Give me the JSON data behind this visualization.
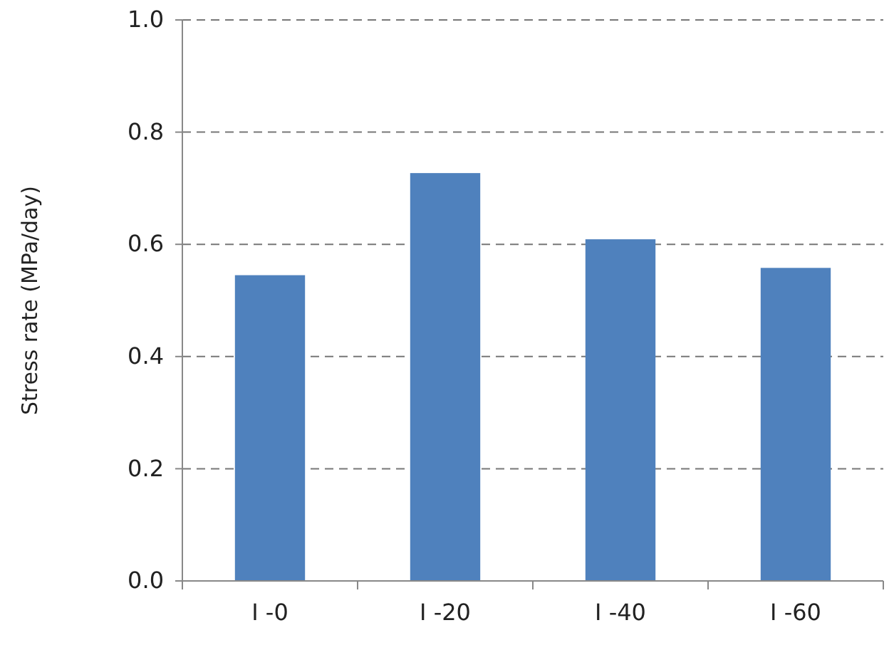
{
  "chart_data": {
    "type": "bar",
    "ylabel": "Stress rate (MPa/day)",
    "categories": [
      "I -0",
      "I -20",
      "I -40",
      "I -60"
    ],
    "values": [
      0.545,
      0.727,
      0.609,
      0.558
    ],
    "color": "#4f81bd",
    "ylim": [
      0,
      1.0
    ],
    "yticks": [
      {
        "value": 0,
        "label": "0.0"
      },
      {
        "value": 0.2,
        "label": "0.2"
      },
      {
        "value": 0.4,
        "label": "0.4"
      },
      {
        "value": 0.6,
        "label": "0.6"
      },
      {
        "value": 0.8,
        "label": "0.8"
      },
      {
        "value": 1.0,
        "label": "1.0"
      }
    ],
    "grid": "y"
  }
}
